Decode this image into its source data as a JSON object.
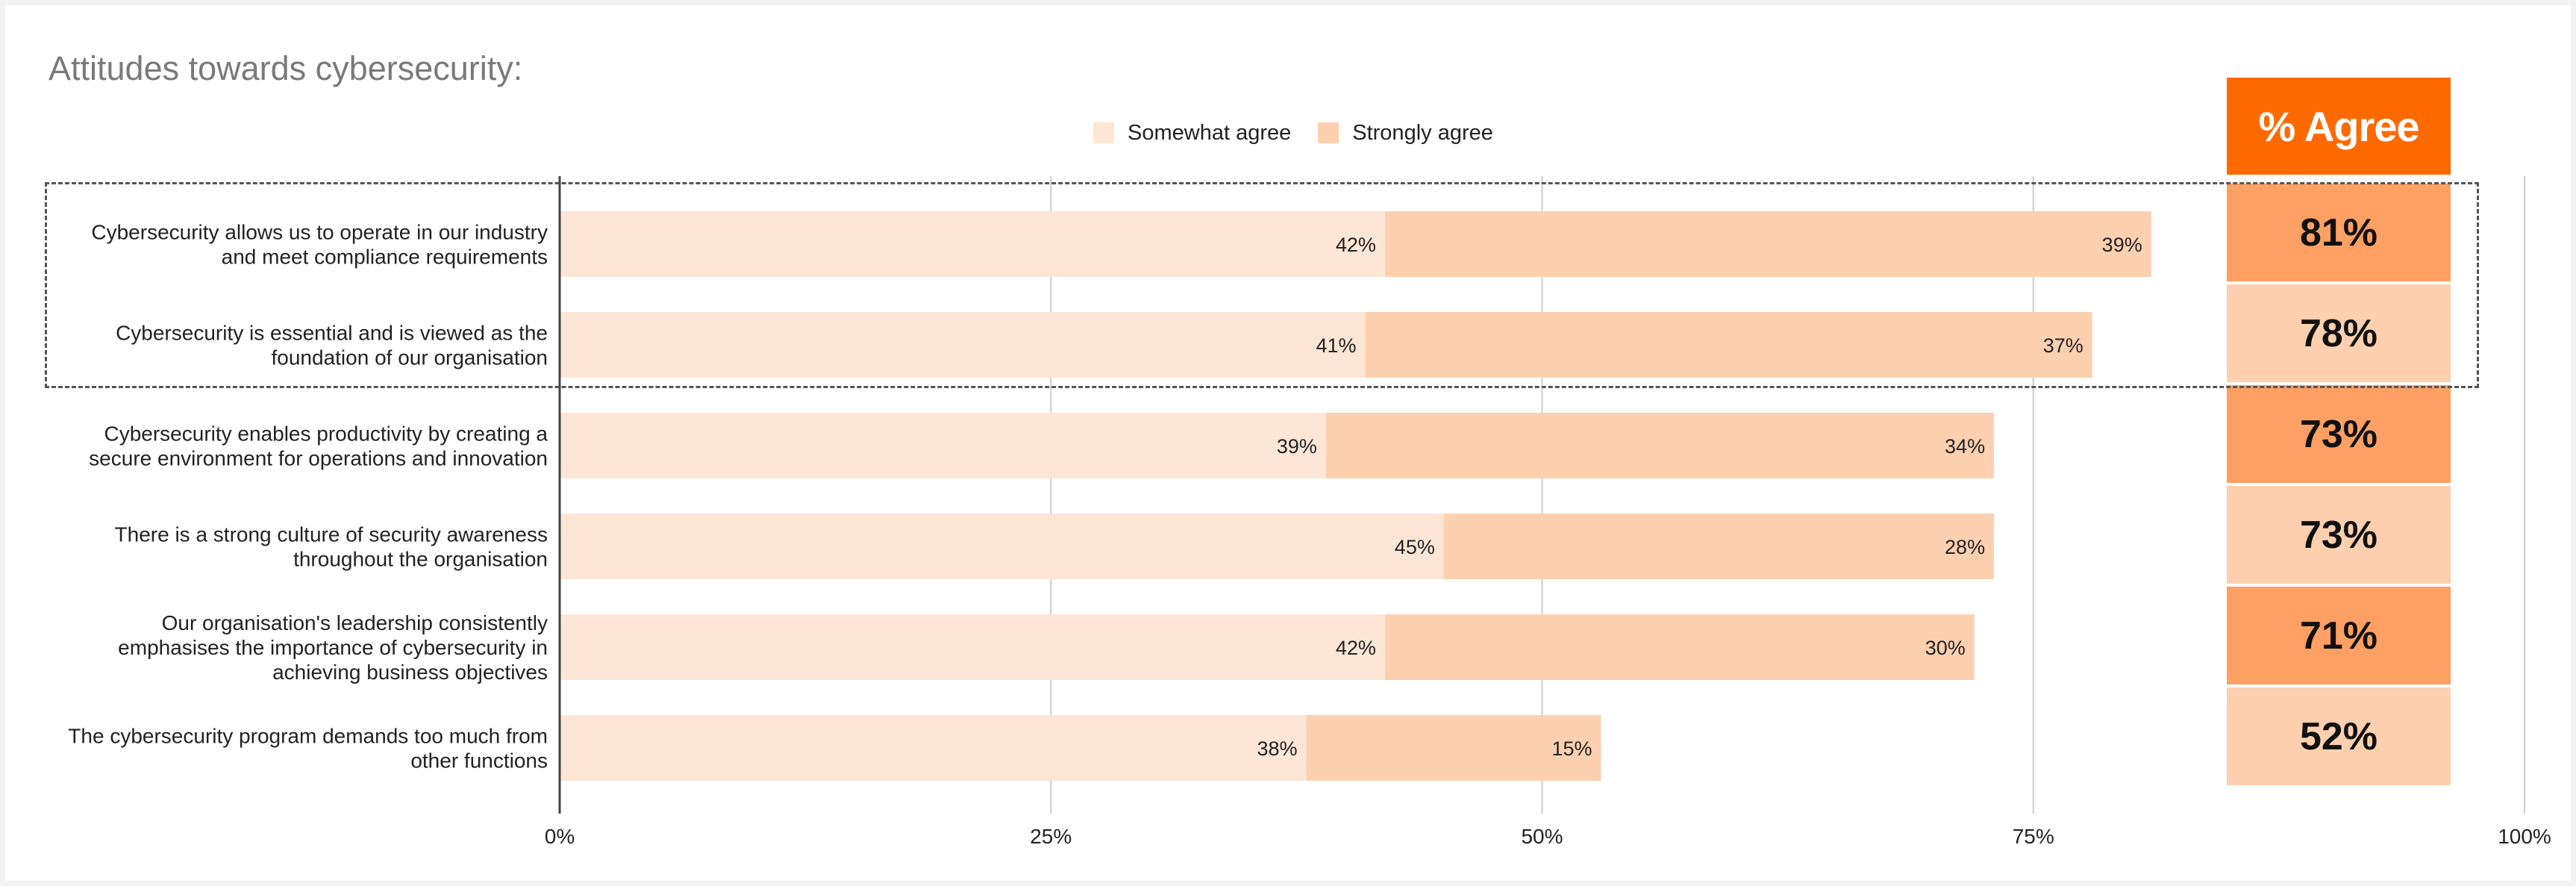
{
  "title": "Attitudes towards cybersecurity:",
  "colors": {
    "somewhat": "#fde6d6",
    "strongly": "#fdd0b0",
    "header": "#ff6a00",
    "agree_dark": "#fea063",
    "agree_light": "#fed0b0",
    "grid": "#cccccc",
    "axis": "#444444"
  },
  "legend": [
    {
      "label": "Somewhat agree",
      "color": "#fde6d6"
    },
    {
      "label": "Strongly agree",
      "color": "#fdd0b0"
    }
  ],
  "agree_header": "% Agree",
  "agree_column": [
    "81%",
    "78%",
    "73%",
    "73%",
    "71%",
    "52%"
  ],
  "chart_data": {
    "type": "bar",
    "orientation": "horizontal",
    "stacked": true,
    "categories": [
      [
        "Cybersecurity allows us to operate in our industry",
        "and meet compliance requirements"
      ],
      [
        "Cybersecurity is essential and is viewed as the",
        "foundation of our organisation"
      ],
      [
        "Cybersecurity enables productivity by creating a",
        "secure environment for operations and innovation"
      ],
      [
        "There is a strong culture of security awareness",
        "throughout the organisation"
      ],
      [
        "Our organisation's leadership consistently",
        "emphasises the importance of cybersecurity in",
        "achieving business objectives"
      ],
      [
        "The cybersecurity program demands too much from",
        "other functions"
      ]
    ],
    "series": [
      {
        "name": "Somewhat agree",
        "values": [
          42,
          41,
          39,
          45,
          42,
          38
        ],
        "labels": [
          "42%",
          "41%",
          "39%",
          "45%",
          "42%",
          "38%"
        ]
      },
      {
        "name": "Strongly agree",
        "values": [
          39,
          37,
          34,
          28,
          30,
          15
        ],
        "labels": [
          "39%",
          "37%",
          "34%",
          "28%",
          "30%",
          "15%"
        ]
      }
    ],
    "x_ticks": [
      "0%",
      "25%",
      "50%",
      "75%",
      "100%"
    ],
    "xlim": [
      0,
      100
    ],
    "grid": true,
    "legend_position": "top-center",
    "highlighted_rows": [
      0,
      1
    ]
  }
}
